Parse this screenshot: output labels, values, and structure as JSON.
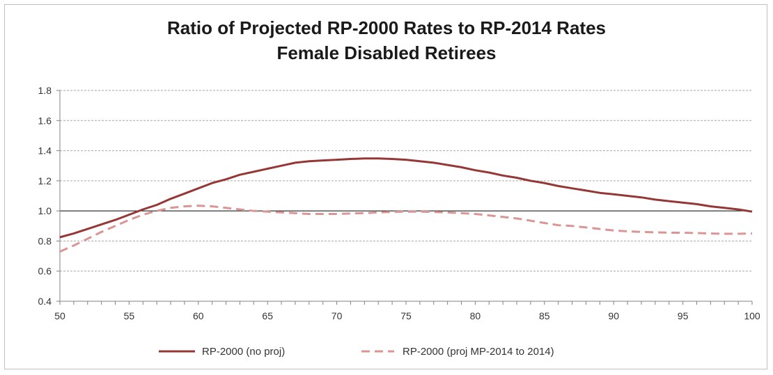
{
  "chart_data": {
    "type": "line",
    "title": "Ratio of Projected RP-2000 Rates to RP-2014 Rates",
    "subtitle": "Female Disabled Retirees",
    "xlim": [
      50,
      100
    ],
    "ylim": [
      0.4,
      1.8
    ],
    "x_ticks": [
      "50",
      "55",
      "60",
      "65",
      "70",
      "75",
      "80",
      "85",
      "90",
      "95",
      "100"
    ],
    "y_ticks": [
      "0.4",
      "0.6",
      "0.8",
      "1.0",
      "1.2",
      "1.4",
      "1.6",
      "1.8"
    ],
    "grid": true,
    "reference_line": 1.0,
    "legend_position": "bottom",
    "x": [
      50,
      51,
      52,
      53,
      54,
      55,
      56,
      57,
      58,
      59,
      60,
      61,
      62,
      63,
      64,
      65,
      66,
      67,
      68,
      69,
      70,
      71,
      72,
      73,
      74,
      75,
      76,
      77,
      78,
      79,
      80,
      81,
      82,
      83,
      84,
      85,
      86,
      87,
      88,
      89,
      90,
      91,
      92,
      93,
      94,
      95,
      96,
      97,
      98,
      99,
      100
    ],
    "series": [
      {
        "name": "RP-2000 (no proj)",
        "color": "#953735",
        "style": "solid",
        "values": [
          0.825,
          0.85,
          0.88,
          0.91,
          0.94,
          0.975,
          1.01,
          1.04,
          1.08,
          1.115,
          1.15,
          1.185,
          1.21,
          1.24,
          1.26,
          1.28,
          1.3,
          1.32,
          1.33,
          1.335,
          1.34,
          1.345,
          1.348,
          1.348,
          1.345,
          1.34,
          1.33,
          1.32,
          1.305,
          1.29,
          1.27,
          1.255,
          1.235,
          1.22,
          1.2,
          1.185,
          1.165,
          1.15,
          1.135,
          1.12,
          1.11,
          1.1,
          1.09,
          1.075,
          1.065,
          1.055,
          1.045,
          1.03,
          1.02,
          1.01,
          0.995
        ]
      },
      {
        "name": "RP-2000 (proj MP-2014 to 2014)",
        "color": "#d99694",
        "style": "dashed",
        "values": [
          0.73,
          0.77,
          0.815,
          0.86,
          0.9,
          0.94,
          0.975,
          1.0,
          1.02,
          1.03,
          1.035,
          1.03,
          1.02,
          1.01,
          1.0,
          0.995,
          0.99,
          0.985,
          0.98,
          0.98,
          0.98,
          0.983,
          0.985,
          0.99,
          0.993,
          0.995,
          0.995,
          0.993,
          0.99,
          0.985,
          0.98,
          0.97,
          0.96,
          0.95,
          0.935,
          0.92,
          0.905,
          0.9,
          0.89,
          0.88,
          0.87,
          0.865,
          0.86,
          0.858,
          0.855,
          0.855,
          0.853,
          0.85,
          0.848,
          0.848,
          0.85
        ]
      }
    ]
  }
}
